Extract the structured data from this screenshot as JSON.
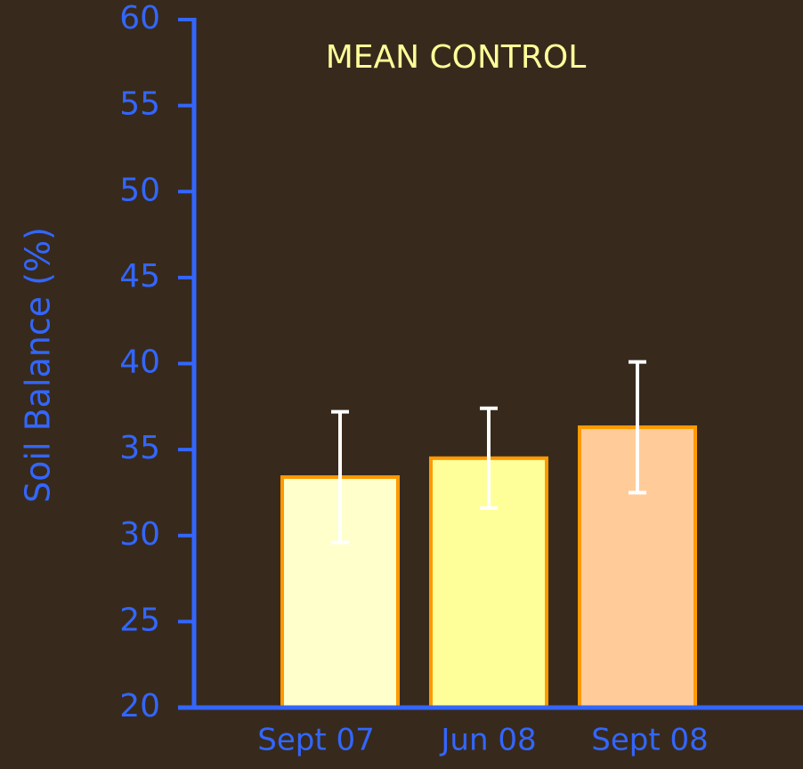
{
  "chart_data": {
    "type": "bar",
    "title": "MEAN CONTROL",
    "y_label": "Soil Balance (%)",
    "categories": [
      "Sept 07",
      "Jun 08",
      "Sept 08"
    ],
    "values": [
      33.4,
      34.5,
      36.3
    ],
    "errors": [
      3.8,
      2.9,
      3.8
    ],
    "colors": [
      "#ffffcc",
      "#ffff99",
      "#ffcc99"
    ],
    "edge_color": "#ff9900",
    "error_color": "#ffffff",
    "axis_color": "#3366ff",
    "ylim": [
      20,
      60
    ],
    "yticks": [
      20,
      25,
      30,
      35,
      40,
      45,
      50,
      55,
      60
    ],
    "grid": false
  }
}
